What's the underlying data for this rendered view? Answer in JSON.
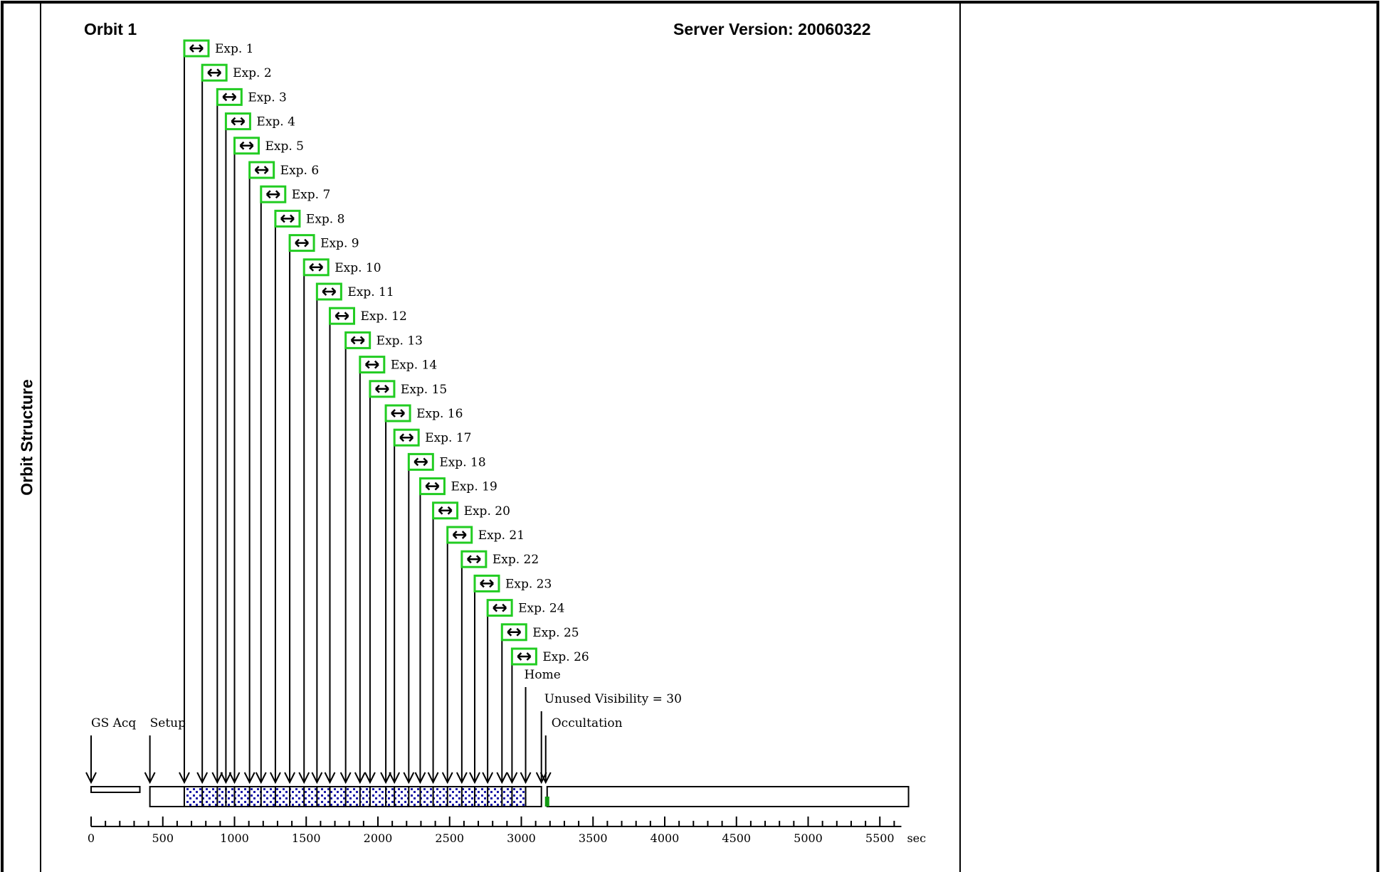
{
  "header": {
    "orbit_title": "Orbit 1",
    "server_version": "Server Version: 20060322"
  },
  "side_label": "Orbit Structure",
  "colors": {
    "frame": "#000000",
    "icon_border": "#22cc22",
    "exposure_fill": "#1a1aa8",
    "occultation_marker": "#119911"
  },
  "icon": "expand-arrows-icon",
  "diagram": {
    "axis": {
      "min": 0,
      "max": 5700,
      "unit_label": "sec",
      "labels": [
        "0",
        "500",
        "1000",
        "1500",
        "2000",
        "2500",
        "3000",
        "3500",
        "4000",
        "4500",
        "5000",
        "5500"
      ]
    },
    "events": [
      {
        "label": "GS Acq",
        "time": 0
      },
      {
        "label": "Setup",
        "time": 410
      },
      {
        "label": "Home",
        "time": 3030
      },
      {
        "label": "Unused Visibility = 30",
        "time": 3140
      },
      {
        "label": "Occultation",
        "time": 3170
      }
    ],
    "exposures": [
      {
        "label": "Exp. 1",
        "time": 650
      },
      {
        "label": "Exp. 2",
        "time": 775
      },
      {
        "label": "Exp. 3",
        "time": 880
      },
      {
        "label": "Exp. 4",
        "time": 940
      },
      {
        "label": "Exp. 5",
        "time": 1000
      },
      {
        "label": "Exp. 6",
        "time": 1105
      },
      {
        "label": "Exp. 7",
        "time": 1185
      },
      {
        "label": "Exp. 8",
        "time": 1285
      },
      {
        "label": "Exp. 9",
        "time": 1385
      },
      {
        "label": "Exp. 10",
        "time": 1485
      },
      {
        "label": "Exp. 11",
        "time": 1575
      },
      {
        "label": "Exp. 12",
        "time": 1665
      },
      {
        "label": "Exp. 13",
        "time": 1775
      },
      {
        "label": "Exp. 14",
        "time": 1875
      },
      {
        "label": "Exp. 15",
        "time": 1945
      },
      {
        "label": "Exp. 16",
        "time": 2055
      },
      {
        "label": "Exp. 17",
        "time": 2115
      },
      {
        "label": "Exp. 18",
        "time": 2215
      },
      {
        "label": "Exp. 19",
        "time": 2295
      },
      {
        "label": "Exp. 20",
        "time": 2385
      },
      {
        "label": "Exp. 21",
        "time": 2485
      },
      {
        "label": "Exp. 22",
        "time": 2585
      },
      {
        "label": "Exp. 23",
        "time": 2675
      },
      {
        "label": "Exp. 24",
        "time": 2765
      },
      {
        "label": "Exp. 25",
        "time": 2865
      },
      {
        "label": "Exp. 26",
        "time": 2935
      }
    ],
    "segments": [
      {
        "name": "gs-acq",
        "start": 0,
        "end": 340,
        "type": "plain"
      },
      {
        "name": "setup",
        "start": 410,
        "end": 650,
        "type": "plain"
      },
      {
        "name": "exposures",
        "start": 650,
        "end": 3030,
        "type": "exposure"
      },
      {
        "name": "home",
        "start": 3030,
        "end": 3140,
        "type": "plain"
      },
      {
        "name": "occultation",
        "start": 3180,
        "end": 5700,
        "type": "plain"
      }
    ]
  }
}
